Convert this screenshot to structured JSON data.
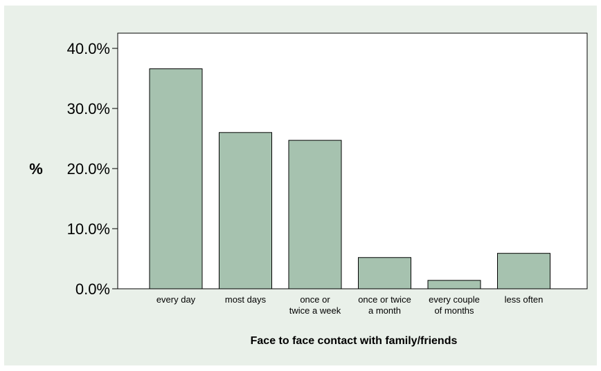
{
  "chart_data": {
    "type": "bar",
    "title": "",
    "xlabel": "Face to face contact with family/friends",
    "ylabel": "%",
    "categories": [
      [
        "every day"
      ],
      [
        "most days"
      ],
      [
        "once or",
        "twice a week"
      ],
      [
        "once or twice",
        "a month"
      ],
      [
        "every couple",
        "of months"
      ],
      [
        "less often"
      ]
    ],
    "values": [
      36.6,
      26.0,
      24.7,
      5.2,
      1.4,
      5.9
    ],
    "value_unit": "%",
    "yticks": [
      "0.0%",
      "10.0%",
      "20.0%",
      "30.0%",
      "40.0%"
    ],
    "ytick_values": [
      0,
      10,
      20,
      30,
      40
    ],
    "ylim": [
      0,
      40
    ],
    "grid": false,
    "legend": "none",
    "colors": {
      "bar_fill": "#a6c2af",
      "bar_stroke": "#000000",
      "plot_bg": "#ffffff",
      "frame_bg": "#e9f0e9"
    }
  }
}
